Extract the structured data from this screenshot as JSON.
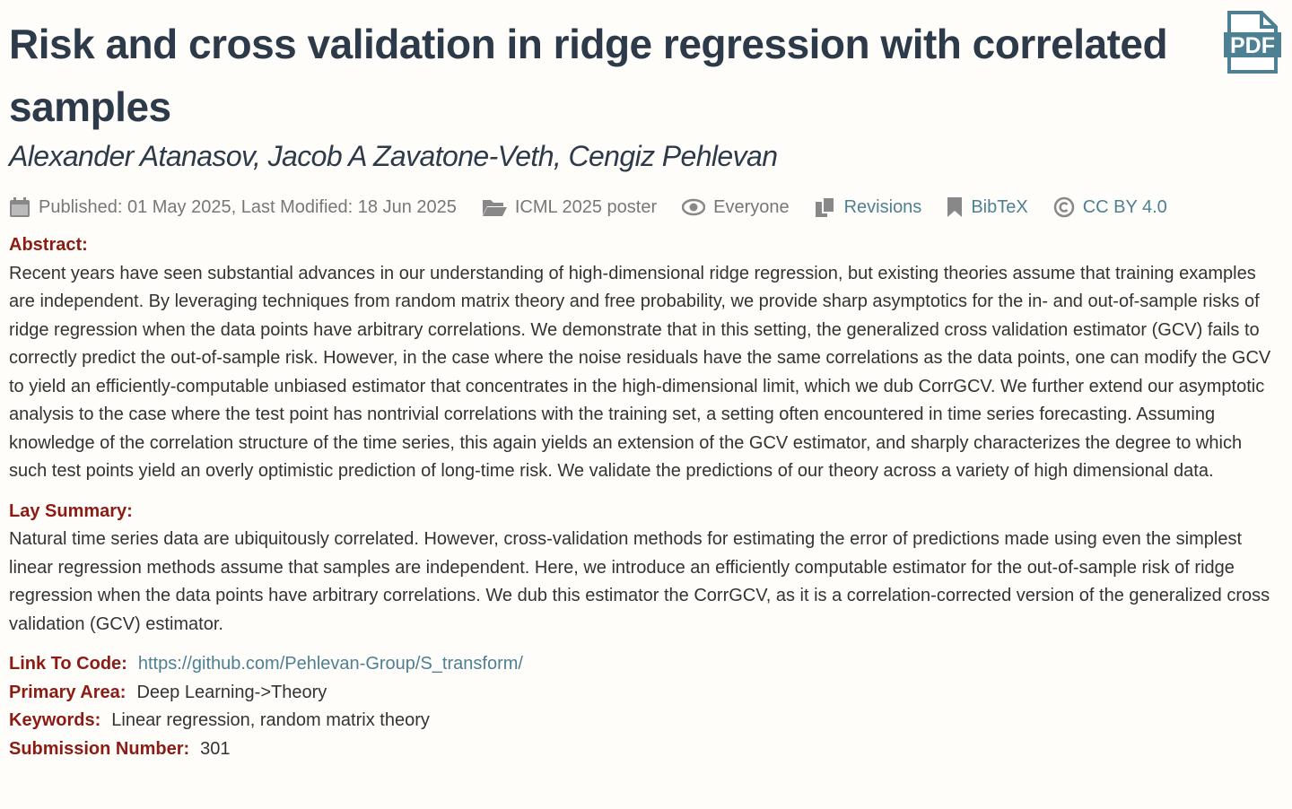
{
  "title": "Risk and cross validation in ridge regression with correlated samples",
  "pdf_icon": "PDF",
  "authors": "Alexander Atanasov, Jacob A Zavatone-Veth, Cengiz Pehlevan",
  "meta": {
    "dates": "Published: 01 May 2025, Last Modified: 18 Jun 2025",
    "venue": "ICML 2025 poster",
    "readers": "Everyone",
    "revisions": "Revisions",
    "bibtex": "BibTeX",
    "license": "CC BY 4.0"
  },
  "abstract": {
    "label": "Abstract:",
    "text": "Recent years have seen substantial advances in our understanding of high-dimensional ridge regression, but existing theories assume that training examples are independent. By leveraging techniques from random matrix theory and free probability, we provide sharp asymptotics for the in- and out-of-sample risks of ridge regression when the data points have arbitrary correlations. We demonstrate that in this setting, the generalized cross validation estimator (GCV) fails to correctly predict the out-of-sample risk. However, in the case where the noise residuals have the same correlations as the data points, one can modify the GCV to yield an efficiently-computable unbiased estimator that concentrates in the high-dimensional limit, which we dub CorrGCV. We further extend our asymptotic analysis to the case where the test point has nontrivial correlations with the training set, a setting often encountered in time series forecasting. Assuming knowledge of the correlation structure of the time series, this again yields an extension of the GCV estimator, and sharply characterizes the degree to which such test points yield an overly optimistic prediction of long-time risk. We validate the predictions of our theory across a variety of high dimensional data."
  },
  "lay_summary": {
    "label": "Lay Summary:",
    "text": "Natural time series data are ubiquitously correlated. However, cross-validation methods for estimating the error of predictions made using even the simplest linear regression methods assume that samples are independent. Here, we introduce an efficiently computable estimator for the out-of-sample risk of ridge regression when the data points have arbitrary correlations. We dub this estimator the CorrGCV, as it is a correlation-corrected version of the generalized cross validation (GCV) estimator."
  },
  "fields": [
    {
      "label": "Link To Code:",
      "value": "https://github.com/Pehlevan-Group/S_transform/"
    },
    {
      "label": "Primary Area:",
      "value": "Deep Learning->Theory"
    },
    {
      "label": "Keywords:",
      "value": "Linear regression, random matrix theory"
    },
    {
      "label": "Submission Number:",
      "value": "301"
    }
  ]
}
